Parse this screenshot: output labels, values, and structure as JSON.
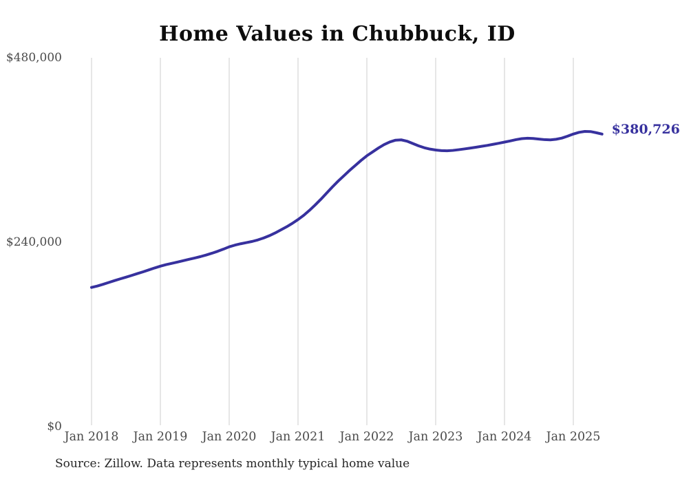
{
  "page": {
    "source_note": "Source: Zillow. Data represents monthly typical home value"
  },
  "chart_data": {
    "type": "line",
    "title": "Home Values in Chubbuck, ID",
    "series_name": "Monthly typical home value",
    "x": [
      "2018-01",
      "2018-02",
      "2018-03",
      "2018-04",
      "2018-05",
      "2018-06",
      "2018-07",
      "2018-08",
      "2018-09",
      "2018-10",
      "2018-11",
      "2018-12",
      "2019-01",
      "2019-02",
      "2019-03",
      "2019-04",
      "2019-05",
      "2019-06",
      "2019-07",
      "2019-08",
      "2019-09",
      "2019-10",
      "2019-11",
      "2019-12",
      "2020-01",
      "2020-02",
      "2020-03",
      "2020-04",
      "2020-05",
      "2020-06",
      "2020-07",
      "2020-08",
      "2020-09",
      "2020-10",
      "2020-11",
      "2020-12",
      "2021-01",
      "2021-02",
      "2021-03",
      "2021-04",
      "2021-05",
      "2021-06",
      "2021-07",
      "2021-08",
      "2021-09",
      "2021-10",
      "2021-11",
      "2021-12",
      "2022-01",
      "2022-02",
      "2022-03",
      "2022-04",
      "2022-05",
      "2022-06",
      "2022-07",
      "2022-08",
      "2022-09",
      "2022-10",
      "2022-11",
      "2022-12",
      "2023-01",
      "2023-02",
      "2023-03",
      "2023-04",
      "2023-05",
      "2023-06",
      "2023-07",
      "2023-08",
      "2023-09",
      "2023-10",
      "2023-11",
      "2023-12",
      "2024-01",
      "2024-02",
      "2024-03",
      "2024-04",
      "2024-05",
      "2024-06",
      "2024-07",
      "2024-08",
      "2024-09",
      "2024-10",
      "2024-11",
      "2024-12",
      "2025-01",
      "2025-02",
      "2025-03",
      "2025-04",
      "2025-05",
      "2025-06"
    ],
    "values": [
      181200,
      183000,
      185200,
      187600,
      190000,
      192300,
      194500,
      196800,
      199200,
      201500,
      204000,
      206500,
      208800,
      210800,
      212500,
      214200,
      216000,
      217800,
      219500,
      221300,
      223400,
      225700,
      228200,
      231000,
      234000,
      236200,
      238000,
      239500,
      241000,
      243000,
      245500,
      248500,
      252000,
      256000,
      260000,
      264500,
      269500,
      275000,
      281500,
      288500,
      296000,
      304000,
      312000,
      319500,
      326500,
      333500,
      340000,
      346500,
      352500,
      357500,
      362500,
      367000,
      370500,
      372800,
      373200,
      371500,
      368500,
      365500,
      363000,
      361200,
      360000,
      359200,
      359000,
      359500,
      360400,
      361400,
      362500,
      363600,
      364800,
      366000,
      367400,
      368800,
      370300,
      371800,
      373500,
      374800,
      375300,
      375000,
      374200,
      373500,
      373200,
      374000,
      375500,
      378000,
      380800,
      383000,
      384200,
      384000,
      382500,
      380726
    ],
    "x_tick_labels": [
      "Jan 2018",
      "Jan 2019",
      "Jan 2020",
      "Jan 2021",
      "Jan 2022",
      "Jan 2023",
      "Jan 2024",
      "Jan 2025"
    ],
    "y_ticks": [
      0,
      240000,
      480000
    ],
    "y_tick_labels": [
      "$0",
      "$240,000",
      "$480,000"
    ],
    "ylim": [
      0,
      480000
    ],
    "grid": "vertical-only",
    "legend": "none",
    "end_label": "$380,726",
    "end_value": 380726,
    "line_color": "#37319e",
    "end_label_color": "#37319e",
    "gridline_color": "#cccccc",
    "axis_text_color": "#4a4a4a"
  }
}
